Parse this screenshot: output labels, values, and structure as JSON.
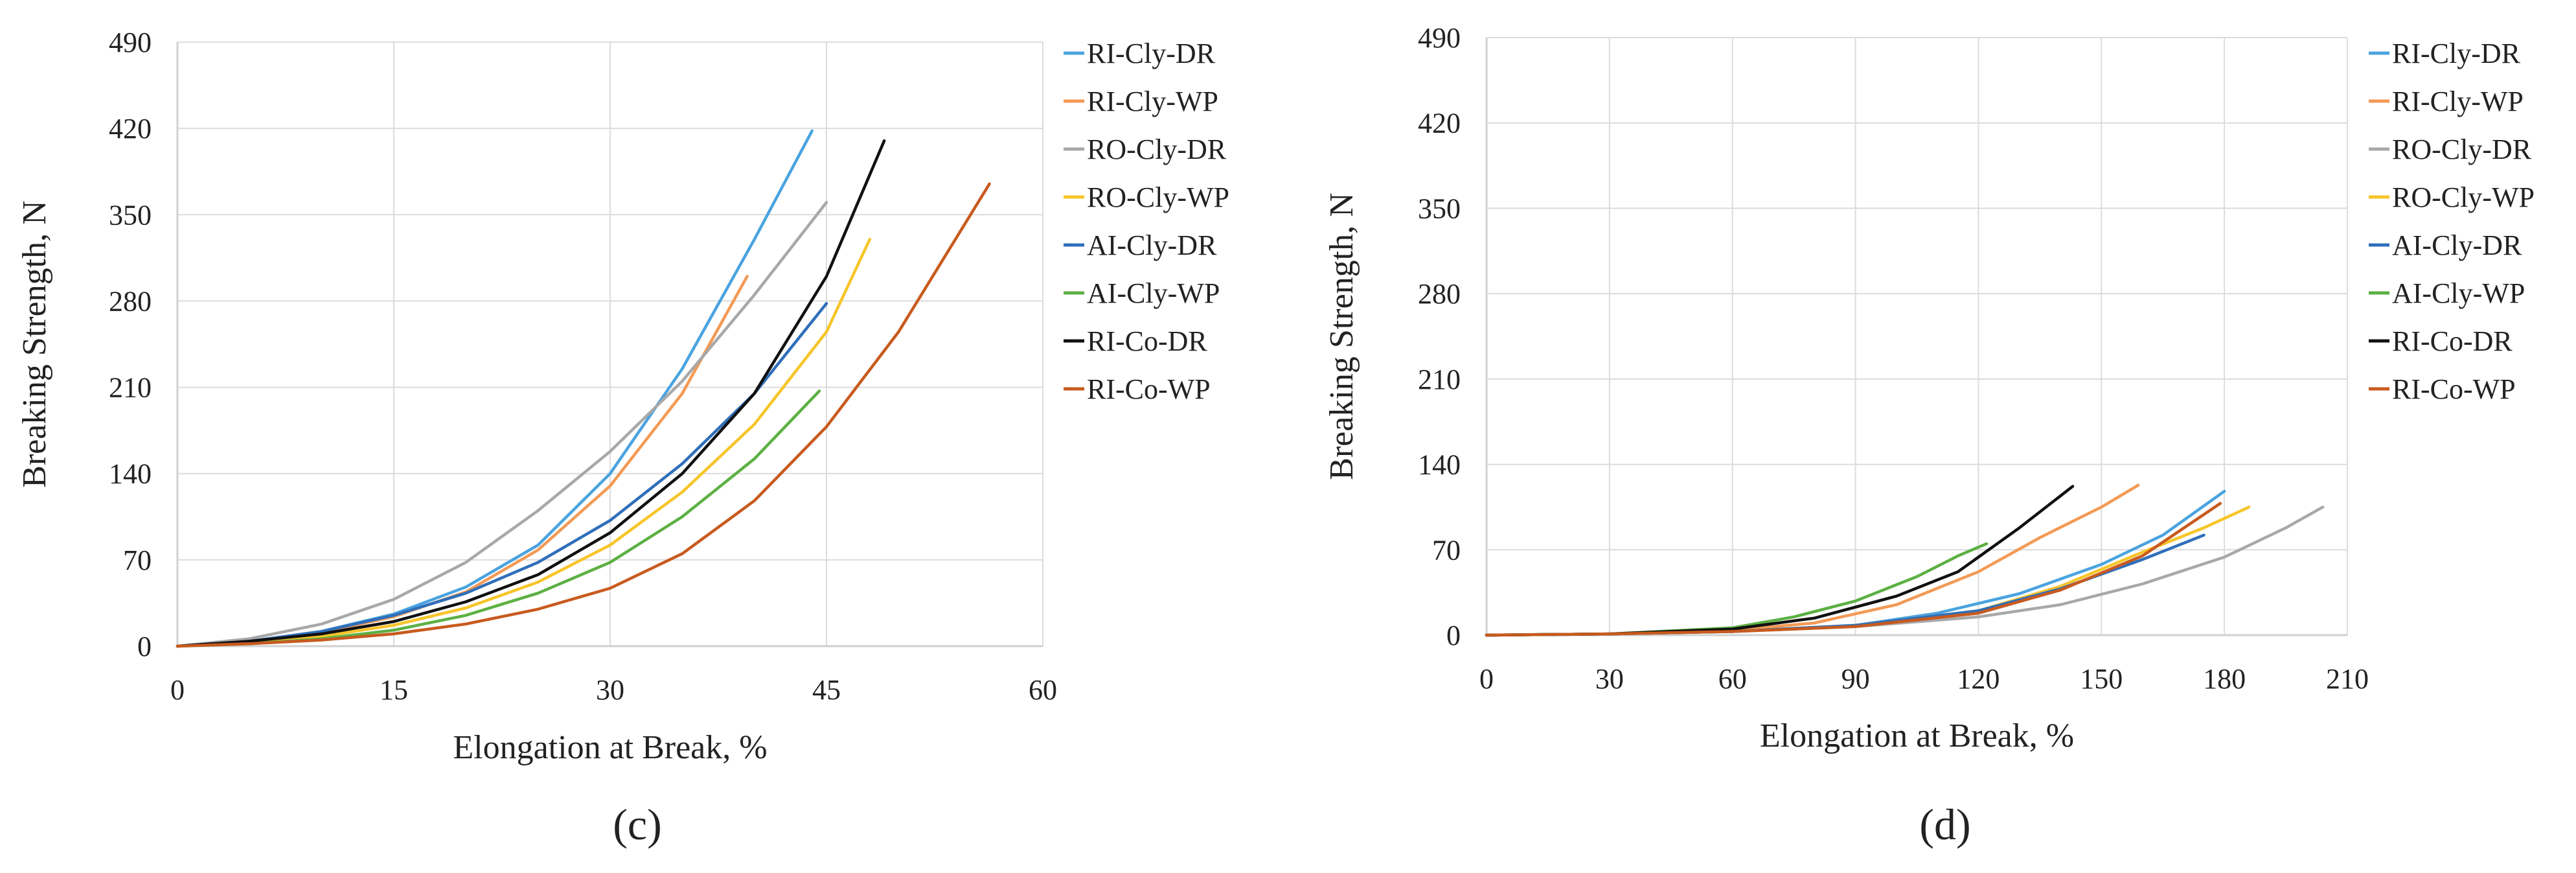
{
  "chart_data": [
    {
      "type": "line",
      "panel_label": "(c)",
      "xlabel": "Elongation at Break, %",
      "ylabel": "Breaking Strength, N",
      "xlim": [
        0,
        60
      ],
      "ylim": [
        0,
        490
      ],
      "xticks": [
        0,
        15,
        30,
        45,
        60
      ],
      "yticks": [
        0,
        70,
        140,
        210,
        280,
        350,
        420,
        490
      ],
      "grid": "vertical",
      "legend_position": "right",
      "series": [
        {
          "name": "RI-Cly-DR",
          "color": "#4aa3df",
          "x": [
            0,
            5,
            10,
            15,
            20,
            25,
            30,
            35,
            40,
            44
          ],
          "y": [
            0,
            3,
            12,
            26,
            48,
            82,
            140,
            225,
            330,
            418
          ]
        },
        {
          "name": "RI-Cly-WP",
          "color": "#f39a55",
          "x": [
            0,
            5,
            10,
            15,
            20,
            25,
            30,
            35,
            39.5
          ],
          "y": [
            0,
            3,
            11,
            24,
            44,
            78,
            130,
            205,
            300
          ]
        },
        {
          "name": "RO-Cly-DR",
          "color": "#a8a8a8",
          "x": [
            0,
            5,
            10,
            15,
            20,
            25,
            30,
            35,
            40,
            45
          ],
          "y": [
            0,
            6,
            18,
            38,
            68,
            110,
            158,
            215,
            285,
            360
          ]
        },
        {
          "name": "RO-Cly-WP",
          "color": "#f7c52a",
          "x": [
            0,
            5,
            10,
            15,
            20,
            25,
            30,
            35,
            40,
            45,
            48
          ],
          "y": [
            0,
            2,
            8,
            17,
            31,
            52,
            82,
            125,
            180,
            255,
            330
          ]
        },
        {
          "name": "AI-Cly-DR",
          "color": "#2f6fba",
          "x": [
            0,
            5,
            10,
            15,
            20,
            25,
            30,
            35,
            40,
            45
          ],
          "y": [
            0,
            4,
            12,
            25,
            43,
            68,
            102,
            148,
            205,
            278
          ]
        },
        {
          "name": "AI-Cly-WP",
          "color": "#5cb043",
          "x": [
            0,
            5,
            10,
            15,
            20,
            25,
            30,
            35,
            40,
            44.5
          ],
          "y": [
            0,
            2,
            6,
            13,
            25,
            43,
            68,
            105,
            152,
            207
          ]
        },
        {
          "name": "RI-Co-DR",
          "color": "#111111",
          "x": [
            0,
            5,
            10,
            15,
            20,
            25,
            30,
            35,
            40,
            45,
            49
          ],
          "y": [
            0,
            4,
            10,
            20,
            36,
            58,
            92,
            140,
            205,
            300,
            410
          ]
        },
        {
          "name": "RI-Co-WP",
          "color": "#c85a1e",
          "x": [
            0,
            5,
            10,
            15,
            20,
            25,
            30,
            35,
            40,
            45,
            50,
            56.3
          ],
          "y": [
            0,
            2,
            5,
            10,
            18,
            30,
            47,
            75,
            118,
            178,
            255,
            375
          ]
        }
      ]
    },
    {
      "type": "line",
      "panel_label": "(d)",
      "xlabel": "Elongation at Break, %",
      "ylabel": "Breaking Strength, N",
      "xlim": [
        0,
        210
      ],
      "ylim": [
        0,
        490
      ],
      "xticks": [
        0,
        30,
        60,
        90,
        120,
        150,
        180,
        210
      ],
      "yticks": [
        0,
        70,
        140,
        210,
        280,
        350,
        420,
        490
      ],
      "grid": "vertical",
      "legend_position": "right",
      "series": [
        {
          "name": "RI-Cly-DR",
          "color": "#4aa3df",
          "x": [
            0,
            30,
            60,
            90,
            110,
            130,
            150,
            165,
            180
          ],
          "y": [
            0,
            1,
            3,
            8,
            18,
            34,
            58,
            82,
            118
          ]
        },
        {
          "name": "RI-Cly-WP",
          "color": "#f39a55",
          "x": [
            0,
            30,
            60,
            80,
            100,
            120,
            135,
            150,
            159
          ],
          "y": [
            0,
            1,
            4,
            10,
            25,
            52,
            80,
            105,
            123
          ]
        },
        {
          "name": "RO-Cly-DR",
          "color": "#a8a8a8",
          "x": [
            0,
            30,
            60,
            90,
            120,
            140,
            160,
            180,
            195,
            204
          ],
          "y": [
            0,
            1,
            3,
            7,
            15,
            25,
            42,
            64,
            88,
            105
          ]
        },
        {
          "name": "RO-Cly-WP",
          "color": "#f7c52a",
          "x": [
            0,
            30,
            60,
            90,
            120,
            140,
            160,
            175,
            186
          ],
          "y": [
            0,
            1,
            3,
            8,
            20,
            40,
            68,
            88,
            105
          ]
        },
        {
          "name": "AI-Cly-DR",
          "color": "#2f6fba",
          "x": [
            0,
            30,
            60,
            90,
            120,
            140,
            160,
            175
          ],
          "y": [
            0,
            1,
            3,
            8,
            20,
            38,
            62,
            82
          ]
        },
        {
          "name": "AI-Cly-WP",
          "color": "#5cb043",
          "x": [
            0,
            30,
            60,
            75,
            90,
            105,
            115,
            122
          ],
          "y": [
            0,
            1,
            6,
            15,
            28,
            48,
            65,
            75
          ]
        },
        {
          "name": "RI-Co-DR",
          "color": "#111111",
          "x": [
            0,
            30,
            60,
            80,
            100,
            115,
            130,
            143
          ],
          "y": [
            0,
            1,
            5,
            14,
            32,
            52,
            88,
            122
          ]
        },
        {
          "name": "RI-Co-WP",
          "color": "#c85a1e",
          "x": [
            0,
            30,
            60,
            90,
            120,
            140,
            160,
            179
          ],
          "y": [
            0,
            1,
            3,
            7,
            18,
            37,
            65,
            108
          ]
        }
      ]
    }
  ]
}
